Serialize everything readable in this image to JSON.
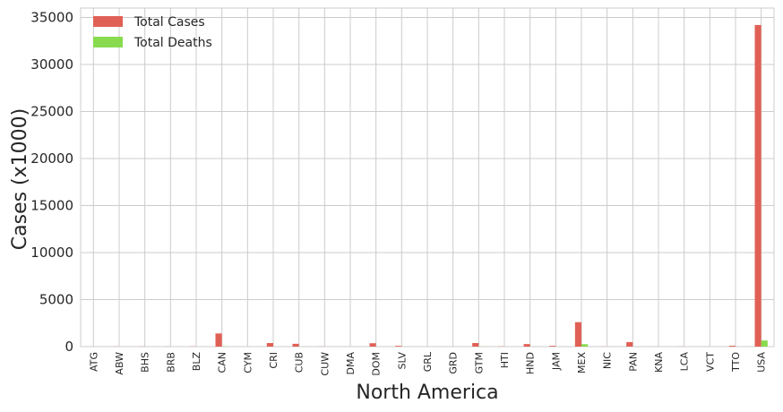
{
  "chart_data": {
    "type": "bar",
    "title": "",
    "xlabel": "North America",
    "ylabel": "Cases (x1000)",
    "ylim": [
      0,
      36000
    ],
    "yticks": [
      0,
      5000,
      10000,
      15000,
      20000,
      25000,
      30000,
      35000
    ],
    "grid": true,
    "legend_position": "top-left",
    "categories": [
      "ATG",
      "ABW",
      "BHS",
      "BRB",
      "BLZ",
      "CAN",
      "CYM",
      "CRI",
      "CUB",
      "CUW",
      "DMA",
      "DOM",
      "SLV",
      "GRL",
      "GRD",
      "GTM",
      "HTI",
      "HND",
      "JAM",
      "MEX",
      "NIC",
      "PAN",
      "KNA",
      "LCA",
      "VCT",
      "TTO",
      "USA"
    ],
    "series": [
      {
        "name": "Total Cases",
        "color": "#e06055",
        "values": [
          2,
          10,
          12,
          10,
          20,
          1400,
          2,
          380,
          300,
          12,
          2,
          360,
          80,
          0,
          2,
          380,
          20,
          270,
          80,
          2600,
          10,
          480,
          3,
          12,
          2,
          90,
          34200
        ]
      },
      {
        "name": "Total Deaths",
        "color": "#88db4e",
        "values": [
          0,
          0,
          0,
          0,
          0,
          27,
          0,
          5,
          8,
          0,
          0,
          4,
          2,
          0,
          0,
          11,
          1,
          7,
          2,
          260,
          0,
          7,
          0,
          0,
          0,
          2,
          650
        ]
      }
    ]
  }
}
